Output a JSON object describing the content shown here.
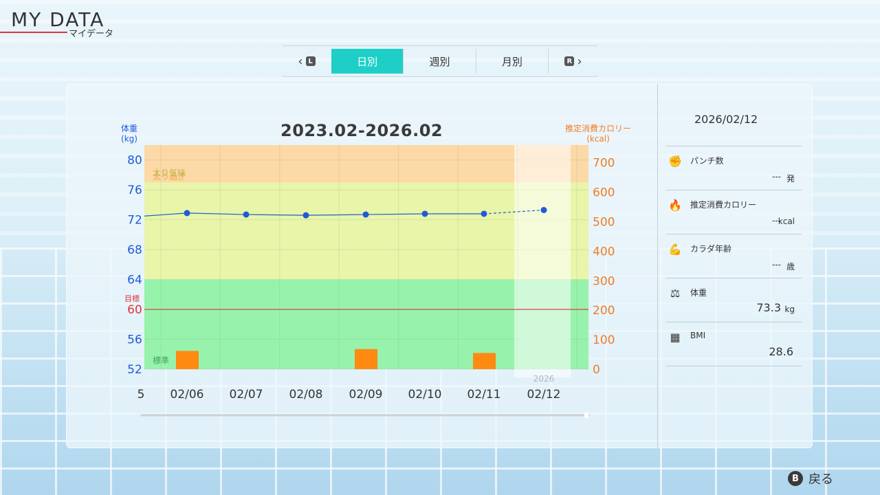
{
  "header": {
    "title": "MY DATA",
    "subtitle": "マイデータ"
  },
  "tabs": {
    "prev_key": "L",
    "next_key": "R",
    "items": [
      {
        "label": "日別",
        "active": true
      },
      {
        "label": "週別",
        "active": false
      },
      {
        "label": "月別",
        "active": false
      }
    ]
  },
  "chart_data": {
    "type": "line",
    "title": "2023.02-2026.02",
    "ylabel_left": "体重\n(kg)",
    "ylabel_right": "推定消費カロリー\n(kcal)",
    "left_ticks": [
      80,
      76,
      72,
      68,
      64,
      60,
      56,
      52
    ],
    "right_ticks": [
      700,
      600,
      500,
      400,
      300,
      200,
      100,
      0
    ],
    "ylim_left": [
      52,
      82
    ],
    "ylim_right": [
      0,
      760
    ],
    "target": {
      "label": "目標",
      "value": 60,
      "color": "#e0343a"
    },
    "zones": [
      {
        "label": "太り過ぎ",
        "from": 77,
        "to": 82,
        "color": "#fcd9a6",
        "label_color": "#f0a54a"
      },
      {
        "label": "太り気味",
        "from": 64,
        "to": 77,
        "color": "#e9f5a8",
        "label_color": "#b6b84a"
      },
      {
        "label": "標準",
        "from": 52,
        "to": 64,
        "color": "#97f2ab",
        "label_color": "#3fa860"
      }
    ],
    "x_labels": [
      "5",
      "02/06",
      "02/07",
      "02/08",
      "02/09",
      "02/10",
      "02/11",
      "02/12"
    ],
    "x_year_label": {
      "index": 7,
      "text": "2026"
    },
    "weight_series": {
      "name": "体重",
      "start_value": 72.5,
      "values": [
        null,
        72.9,
        72.7,
        72.6,
        72.7,
        72.8,
        72.8,
        73.3
      ],
      "color": "#1f5bd8"
    },
    "calorie_bars": {
      "name": "推定消費カロリー",
      "values": [
        null,
        62,
        null,
        null,
        68,
        null,
        55,
        null
      ],
      "color": "#ff8a12"
    }
  },
  "side": {
    "date": "2026/02/12",
    "rows": [
      {
        "icon": "punch-icon",
        "glyph": "✊",
        "label": "パンチ数",
        "value": "---",
        "unit": "発"
      },
      {
        "icon": "flame-icon",
        "glyph": "🔥",
        "label": "推定消費カロリー",
        "value": "---",
        "unit": "kcal"
      },
      {
        "icon": "body-icon",
        "glyph": "💪",
        "label": "カラダ年齢",
        "value": "---",
        "unit": "歳"
      },
      {
        "icon": "scale-icon",
        "glyph": "⚖",
        "label": "体重",
        "value": "73.3",
        "unit": "kg"
      },
      {
        "icon": "calculator-icon",
        "glyph": "▦",
        "label": "BMI",
        "value": "28.6",
        "unit": ""
      }
    ]
  },
  "footer": {
    "button": "B",
    "label": "戻る"
  }
}
